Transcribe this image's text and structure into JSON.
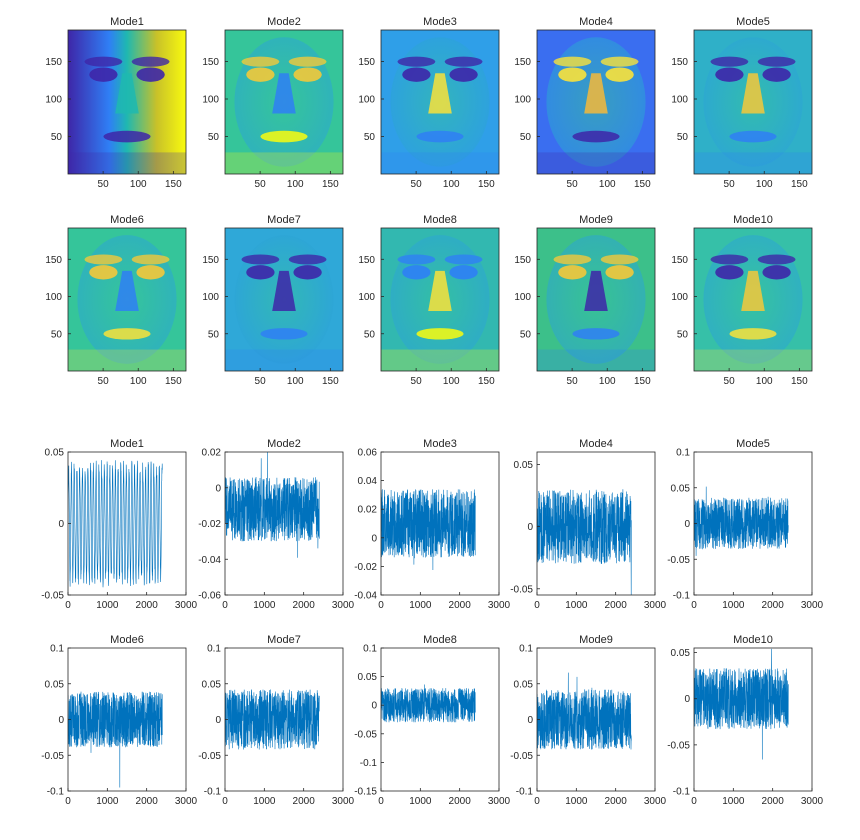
{
  "figure": {
    "image_panels": [
      {
        "title": "Mode1",
        "xticks": [
          "50",
          "100",
          "150"
        ],
        "yticks": [
          "150",
          "100",
          "50"
        ]
      },
      {
        "title": "Mode2",
        "xticks": [
          "50",
          "100",
          "150"
        ],
        "yticks": [
          "150",
          "100",
          "50"
        ]
      },
      {
        "title": "Mode3",
        "xticks": [
          "50",
          "100",
          "150"
        ],
        "yticks": [
          "150",
          "100",
          "50"
        ]
      },
      {
        "title": "Mode4",
        "xticks": [
          "50",
          "100",
          "150"
        ],
        "yticks": [
          "150",
          "100",
          "50"
        ]
      },
      {
        "title": "Mode5",
        "xticks": [
          "50",
          "100",
          "150"
        ],
        "yticks": [
          "150",
          "100",
          "50"
        ]
      },
      {
        "title": "Mode6",
        "xticks": [
          "50",
          "100",
          "150"
        ],
        "yticks": [
          "150",
          "100",
          "50"
        ]
      },
      {
        "title": "Mode7",
        "xticks": [
          "50",
          "100",
          "150"
        ],
        "yticks": [
          "150",
          "100",
          "50"
        ]
      },
      {
        "title": "Mode8",
        "xticks": [
          "50",
          "100",
          "150"
        ],
        "yticks": [
          "150",
          "100",
          "50"
        ]
      },
      {
        "title": "Mode9",
        "xticks": [
          "50",
          "100",
          "150"
        ],
        "yticks": [
          "150",
          "100",
          "50"
        ]
      },
      {
        "title": "Mode10",
        "xticks": [
          "50",
          "100",
          "150"
        ],
        "yticks": [
          "150",
          "100",
          "50"
        ]
      }
    ],
    "colors": {
      "line": "#0072BD",
      "low": "#3e26a8",
      "mid": "#1fb8b0",
      "high": "#f9fb0e"
    }
  },
  "chart_data": [
    {
      "type": "line",
      "title": "Mode1",
      "xlim": [
        0,
        3000
      ],
      "ylim": [
        -0.05,
        0.05
      ],
      "xticks": [
        "0",
        "1000",
        "2000",
        "3000"
      ],
      "yticks": [
        "0.05",
        "0",
        "-0.05"
      ],
      "n_points": 2400,
      "amplitude": 0.045,
      "mean": 0
    },
    {
      "type": "line",
      "title": "Mode2",
      "xlim": [
        0,
        3000
      ],
      "ylim": [
        -0.06,
        0.02
      ],
      "xticks": [
        "0",
        "1000",
        "2000",
        "3000"
      ],
      "yticks": [
        "0.02",
        "0",
        "-0.02",
        "-0.04",
        "-0.06"
      ],
      "n_points": 2400,
      "amplitude": 0.03,
      "mean": -0.012
    },
    {
      "type": "line",
      "title": "Mode3",
      "xlim": [
        0,
        3000
      ],
      "ylim": [
        -0.04,
        0.06
      ],
      "xticks": [
        "0",
        "1000",
        "2000",
        "3000"
      ],
      "yticks": [
        "0.06",
        "0.04",
        "0.02",
        "0",
        "-0.02",
        "-0.04"
      ],
      "n_points": 2400,
      "amplitude": 0.04,
      "mean": 0.01
    },
    {
      "type": "line",
      "title": "Mode4",
      "xlim": [
        0,
        3000
      ],
      "ylim": [
        -0.055,
        0.06
      ],
      "xticks": [
        "0",
        "1000",
        "2000",
        "3000"
      ],
      "yticks": [
        "0.05",
        "0",
        "-0.05"
      ],
      "n_points": 2400,
      "amplitude": 0.05,
      "mean": 0
    },
    {
      "type": "line",
      "title": "Mode5",
      "xlim": [
        0,
        3000
      ],
      "ylim": [
        -0.1,
        0.1
      ],
      "xticks": [
        "0",
        "1000",
        "2000",
        "3000"
      ],
      "yticks": [
        "0.1",
        "0.05",
        "0",
        "-0.05",
        "-0.1"
      ],
      "n_points": 2400,
      "amplitude": 0.06,
      "mean": 0
    },
    {
      "type": "line",
      "title": "Mode6",
      "xlim": [
        0,
        3000
      ],
      "ylim": [
        -0.1,
        0.1
      ],
      "xticks": [
        "0",
        "1000",
        "2000",
        "3000"
      ],
      "yticks": [
        "0.1",
        "0.05",
        "0",
        "-0.05",
        "-0.1"
      ],
      "n_points": 2400,
      "amplitude": 0.065,
      "mean": 0
    },
    {
      "type": "line",
      "title": "Mode7",
      "xlim": [
        0,
        3000
      ],
      "ylim": [
        -0.1,
        0.1
      ],
      "xticks": [
        "0",
        "1000",
        "2000",
        "3000"
      ],
      "yticks": [
        "0.1",
        "0.05",
        "0",
        "-0.05",
        "-0.1"
      ],
      "n_points": 2400,
      "amplitude": 0.07,
      "mean": 0
    },
    {
      "type": "line",
      "title": "Mode8",
      "xlim": [
        0,
        3000
      ],
      "ylim": [
        -0.15,
        0.1
      ],
      "xticks": [
        "0",
        "1000",
        "2000",
        "3000"
      ],
      "yticks": [
        "0.1",
        "0.05",
        "0",
        "-0.05",
        "-0.1",
        "-0.15"
      ],
      "n_points": 2400,
      "amplitude": 0.05,
      "mean": 0
    },
    {
      "type": "line",
      "title": "Mode9",
      "xlim": [
        0,
        3000
      ],
      "ylim": [
        -0.1,
        0.1
      ],
      "xticks": [
        "0",
        "1000",
        "2000",
        "3000"
      ],
      "yticks": [
        "0.1",
        "0.05",
        "0",
        "-0.05",
        "-0.1"
      ],
      "n_points": 2400,
      "amplitude": 0.07,
      "mean": 0
    },
    {
      "type": "line",
      "title": "Mode10",
      "xlim": [
        0,
        3000
      ],
      "ylim": [
        -0.1,
        0.055
      ],
      "xticks": [
        "0",
        "1000",
        "2000",
        "3000"
      ],
      "yticks": [
        "0.05",
        "0",
        "-0.05",
        "-0.1"
      ],
      "n_points": 2400,
      "amplitude": 0.055,
      "mean": 0
    }
  ]
}
